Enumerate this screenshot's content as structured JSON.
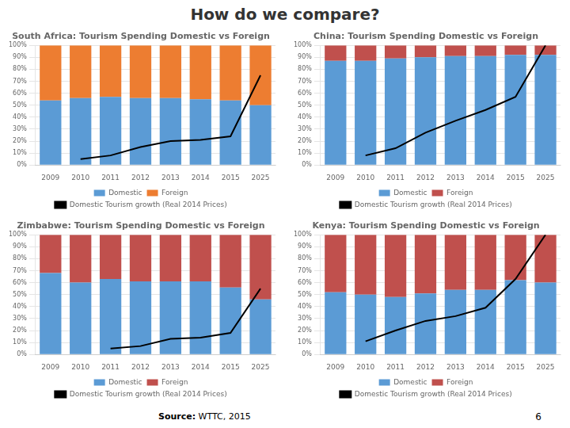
{
  "title": "How do we compare?",
  "annotations": [
    "Source: WTTC, 2015",
    "6"
  ],
  "chart_data": [
    {
      "type": "bar",
      "title": "South Africa: Tourism Spending Domestic vs Foreign",
      "categories": [
        "2009",
        "2010",
        "2011",
        "2012",
        "2013",
        "2014",
        "2015",
        "2025"
      ],
      "stacked": true,
      "grid": true,
      "legend": "bottom",
      "series": [
        {
          "name": "Domestic",
          "type": "bar",
          "color": "#5B9BD5",
          "values": [
            54,
            56,
            57,
            56,
            56,
            55,
            54,
            50
          ]
        },
        {
          "name": "Foreign",
          "type": "bar",
          "color": "#ED7D31",
          "values": [
            46,
            44,
            43,
            44,
            44,
            45,
            46,
            50
          ]
        },
        {
          "name": "Domestic Tourism growth (Real 2014 Prices)",
          "type": "line",
          "axis": "y2",
          "color": "#000000",
          "values": [
            null,
            5,
            8,
            15,
            20,
            21,
            24,
            75
          ]
        }
      ],
      "ylim": [
        0,
        100
      ],
      "yticks": [
        {
          "value": 0,
          "label": "0%"
        },
        {
          "value": 10,
          "label": "10%"
        },
        {
          "value": 20,
          "label": "20%"
        },
        {
          "value": 30,
          "label": "30%"
        },
        {
          "value": 40,
          "label": "40%"
        },
        {
          "value": 50,
          "label": "50%"
        },
        {
          "value": 60,
          "label": "60%"
        },
        {
          "value": 70,
          "label": "70%"
        },
        {
          "value": 80,
          "label": "80%"
        },
        {
          "value": 90,
          "label": "90%"
        },
        {
          "value": 100,
          "label": "100%"
        }
      ],
      "y2lim": [
        0,
        100
      ],
      "y2ticks": []
    },
    {
      "type": "bar",
      "title": "China: Tourism Spending Domestic vs Foreign",
      "categories": [
        "2009",
        "2010",
        "2011",
        "2012",
        "2013",
        "2014",
        "2015",
        "2025"
      ],
      "stacked": true,
      "grid": true,
      "legend": "bottom",
      "series": [
        {
          "name": "Domestic",
          "type": "bar",
          "color": "#5B9BD5",
          "values": [
            87,
            87,
            89,
            90,
            91,
            91,
            92,
            92
          ]
        },
        {
          "name": "Foreign",
          "type": "bar",
          "color": "#C0504D",
          "values": [
            13,
            13,
            11,
            10,
            9,
            9,
            8,
            8
          ]
        },
        {
          "name": "Domestic Tourism growth (Real 2014 Prices)",
          "type": "line",
          "axis": "y2",
          "color": "#000000",
          "values": [
            null,
            8,
            14,
            27,
            37,
            46,
            57,
            100
          ]
        }
      ],
      "ylim": [
        0,
        100
      ],
      "yticks": [
        {
          "value": 0,
          "label": "0%"
        },
        {
          "value": 10,
          "label": "10%"
        },
        {
          "value": 20,
          "label": "20%"
        },
        {
          "value": 30,
          "label": "30%"
        },
        {
          "value": 40,
          "label": "40%"
        },
        {
          "value": 50,
          "label": "50%"
        },
        {
          "value": 60,
          "label": "60%"
        },
        {
          "value": 70,
          "label": "70%"
        },
        {
          "value": 80,
          "label": "80%"
        },
        {
          "value": 90,
          "label": "90%"
        },
        {
          "value": 100,
          "label": "100%"
        }
      ],
      "y2lim": [
        0,
        100
      ],
      "y2ticks": []
    },
    {
      "type": "bar",
      "title": "Zimbabwe: Tourism Spending Domestic vs Foreign",
      "categories": [
        "2009",
        "2010",
        "2011",
        "2012",
        "2013",
        "2014",
        "2015",
        "2025"
      ],
      "stacked": true,
      "grid": true,
      "legend": "bottom",
      "series": [
        {
          "name": "Domestic",
          "type": "bar",
          "color": "#5B9BD5",
          "values": [
            68,
            60,
            63,
            61,
            61,
            61,
            56,
            46
          ]
        },
        {
          "name": "Foreign",
          "type": "bar",
          "color": "#C0504D",
          "values": [
            32,
            40,
            37,
            39,
            39,
            39,
            44,
            54
          ]
        },
        {
          "name": "Domestic Tourism growth (Real 2014 Prices)",
          "type": "line",
          "axis": "y2",
          "color": "#000000",
          "values": [
            null,
            null,
            5,
            7,
            13,
            14,
            18,
            55
          ]
        }
      ],
      "ylim": [
        0,
        100
      ],
      "yticks": [
        {
          "value": 0,
          "label": "0%"
        },
        {
          "value": 10,
          "label": "10%"
        },
        {
          "value": 20,
          "label": "20%"
        },
        {
          "value": 30,
          "label": "30%"
        },
        {
          "value": 40,
          "label": "40%"
        },
        {
          "value": 50,
          "label": "50%"
        },
        {
          "value": 60,
          "label": "60%"
        },
        {
          "value": 70,
          "label": "70%"
        },
        {
          "value": 80,
          "label": "80%"
        },
        {
          "value": 90,
          "label": "90%"
        },
        {
          "value": 100,
          "label": "100%"
        }
      ],
      "y2lim": [
        0,
        100
      ],
      "y2ticks": []
    },
    {
      "type": "bar",
      "title": "Kenya: Tourism Spending Domestic vs Foreign",
      "categories": [
        "2009",
        "2010",
        "2011",
        "2012",
        "2013",
        "2014",
        "2015",
        "2025"
      ],
      "stacked": true,
      "grid": true,
      "legend": "bottom",
      "series": [
        {
          "name": "Domestic",
          "type": "bar",
          "color": "#5B9BD5",
          "values": [
            52,
            50,
            48,
            51,
            54,
            54,
            62,
            60
          ]
        },
        {
          "name": "Foreign",
          "type": "bar",
          "color": "#C0504D",
          "values": [
            48,
            50,
            52,
            49,
            46,
            46,
            38,
            40
          ]
        },
        {
          "name": "Domestic Tourism growth (Real 2014 Prices)",
          "type": "line",
          "axis": "y2",
          "color": "#000000",
          "values": [
            null,
            11,
            20,
            28,
            32,
            39,
            63,
            100
          ]
        }
      ],
      "ylim": [
        0,
        100
      ],
      "yticks": [
        {
          "value": 0,
          "label": "0%"
        },
        {
          "value": 10,
          "label": "10%"
        },
        {
          "value": 20,
          "label": "20%"
        },
        {
          "value": 30,
          "label": "30%"
        },
        {
          "value": 40,
          "label": "40%"
        },
        {
          "value": 50,
          "label": "50%"
        },
        {
          "value": 60,
          "label": "60%"
        },
        {
          "value": 70,
          "label": "70%"
        },
        {
          "value": 80,
          "label": "80%"
        },
        {
          "value": 90,
          "label": "90%"
        },
        {
          "value": 100,
          "label": "100%"
        }
      ],
      "y2lim": [
        0,
        100
      ],
      "y2ticks": []
    }
  ]
}
